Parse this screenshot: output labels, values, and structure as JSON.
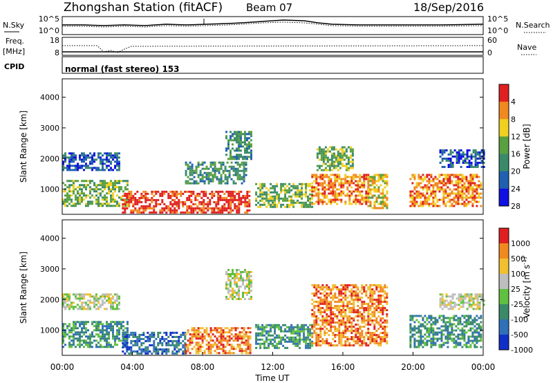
{
  "header": {
    "station": "Zhongshan Station (fitACF)",
    "beam": "Beam 07",
    "date": "18/Sep/2016"
  },
  "top_panels": {
    "nsky_label": "N.Sky",
    "nsearch_label": "N.Search",
    "noise_ticks": [
      "10^5",
      "10^0"
    ],
    "freq_label_1": "Freq.",
    "freq_label_2": "[MHz]",
    "freq_ticks": [
      "18",
      "8"
    ],
    "nave_ticks": [
      "60",
      "0"
    ],
    "nave_label": "Nave",
    "cpid_label": "CPID",
    "cpid_text": "normal (fast stereo) 153"
  },
  "chart_data": [
    {
      "type": "heatmap",
      "title": "",
      "ylabel": "Slant Range [km]",
      "ylim": [
        180,
        4600
      ],
      "yticks": [
        "1000",
        "2000",
        "3000",
        "4000"
      ],
      "colorbar_label": "Power [dB]",
      "colorbar_ticks": [
        "4",
        "8",
        "12",
        "16",
        "20",
        "24",
        "28"
      ],
      "colors": [
        "#1010e0",
        "#2060b0",
        "#3a8a6a",
        "#5aa040",
        "#f0d020",
        "#f08a20",
        "#e02020"
      ],
      "scatter_regions": [
        {
          "t0": 0.0,
          "t1": 3.7,
          "r0": 450,
          "r1": 1300,
          "level": 3
        },
        {
          "t0": 0.0,
          "t1": 3.2,
          "r0": 1600,
          "r1": 2200,
          "level": 1
        },
        {
          "t0": 3.4,
          "t1": 10.7,
          "r0": 250,
          "r1": 950,
          "level": 6
        },
        {
          "t0": 7.0,
          "t1": 10.5,
          "r0": 1200,
          "r1": 1900,
          "level": 2
        },
        {
          "t0": 9.3,
          "t1": 10.8,
          "r0": 2000,
          "r1": 2900,
          "level": 2
        },
        {
          "t0": 11.0,
          "t1": 14.2,
          "r0": 400,
          "r1": 1200,
          "level": 3
        },
        {
          "t0": 14.2,
          "t1": 17.5,
          "r0": 500,
          "r1": 1500,
          "level": 5
        },
        {
          "t0": 14.5,
          "t1": 16.6,
          "r0": 1600,
          "r1": 2400,
          "level": 3
        },
        {
          "t0": 17.4,
          "t1": 18.5,
          "r0": 400,
          "r1": 1500,
          "level": 4
        },
        {
          "t0": 19.8,
          "t1": 23.9,
          "r0": 450,
          "r1": 1500,
          "level": 5
        },
        {
          "t0": 21.5,
          "t1": 24.0,
          "r0": 1700,
          "r1": 2300,
          "level": 1
        }
      ]
    },
    {
      "type": "heatmap",
      "title": "",
      "xlabel": "Time UT",
      "ylabel": "Slant Range [km]",
      "ylim": [
        180,
        4600
      ],
      "yticks": [
        "1000",
        "2000",
        "3000",
        "4000"
      ],
      "xticks": [
        "00:00",
        "04:00",
        "08:00",
        "12:00",
        "16:00",
        "20:00",
        "00:00"
      ],
      "colorbar_label": "Velocity [m s^-1]",
      "colorbar_ticks": [
        "1000",
        "500",
        "100",
        "25",
        "-25",
        "-100",
        "-500",
        "-1000"
      ],
      "colors": [
        "#1030c8",
        "#3070b8",
        "#3a8a6a",
        "#60c040",
        "#bebebe",
        "#f0c030",
        "#f08a20",
        "#e02020"
      ],
      "scatter_regions": [
        {
          "t0": 0.0,
          "t1": 3.7,
          "r0": 450,
          "r1": 1300,
          "level": 2
        },
        {
          "t0": 0.0,
          "t1": 3.2,
          "r0": 1700,
          "r1": 2200,
          "level": 4
        },
        {
          "t0": 3.4,
          "t1": 7.0,
          "r0": 250,
          "r1": 950,
          "level": 1
        },
        {
          "t0": 7.0,
          "t1": 10.7,
          "r0": 250,
          "r1": 1100,
          "level": 6
        },
        {
          "t0": 9.3,
          "t1": 10.8,
          "r0": 2000,
          "r1": 3000,
          "level": 4
        },
        {
          "t0": 11.0,
          "t1": 14.2,
          "r0": 400,
          "r1": 1200,
          "level": 2
        },
        {
          "t0": 14.2,
          "t1": 18.5,
          "r0": 500,
          "r1": 2500,
          "level": 6
        },
        {
          "t0": 19.8,
          "t1": 23.9,
          "r0": 450,
          "r1": 1500,
          "level": 2
        },
        {
          "t0": 21.5,
          "t1": 24.0,
          "r0": 1700,
          "r1": 2200,
          "level": 4
        }
      ]
    }
  ],
  "colors": {
    "frame": "#000000",
    "background": "#ffffff"
  }
}
